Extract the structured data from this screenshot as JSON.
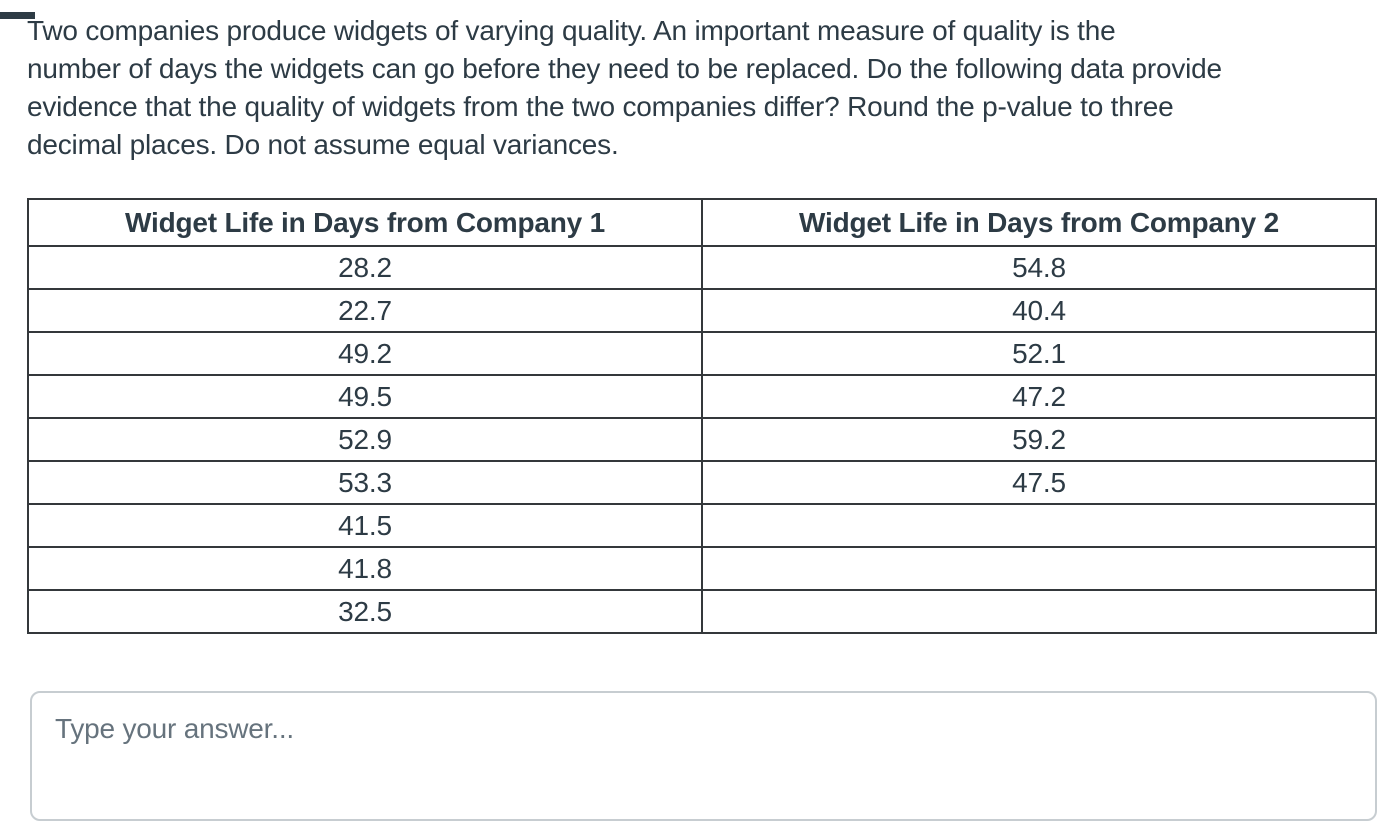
{
  "question": {
    "text": "Two companies produce widgets of varying quality. An important measure of quality is the number of days the widgets can go before they need to be replaced. Do the following data provide evidence that the quality of widgets from the two companies differ? Round the p-value to three decimal places. Do not assume equal variances.",
    "lines": [
      "Two companies produce widgets of varying quality. An important measure of quality is the",
      "number of days the widgets can go before they need to be replaced. Do the following data provide",
      "evidence that the quality of widgets from the two companies differ? Round the p-value to three",
      "decimal places. Do not assume equal variances."
    ]
  },
  "table": {
    "columns": [
      "Widget Life in Days from Company 1",
      "Widget Life in Days from Company 2"
    ],
    "rows": [
      [
        "28.2",
        "54.8"
      ],
      [
        "22.7",
        "40.4"
      ],
      [
        "49.2",
        "52.1"
      ],
      [
        "49.5",
        "47.2"
      ],
      [
        "52.9",
        "59.2"
      ],
      [
        "53.3",
        "47.5"
      ],
      [
        "41.5",
        ""
      ],
      [
        "41.8",
        ""
      ],
      [
        "32.5",
        ""
      ]
    ]
  },
  "answer": {
    "placeholder": "Type your answer..."
  },
  "colors": {
    "text": "#2D3B45",
    "table_border": "#34383b",
    "input_border": "#C7CDD1",
    "placeholder_text": "#66737D",
    "corner_bar": "#2D3B45"
  }
}
